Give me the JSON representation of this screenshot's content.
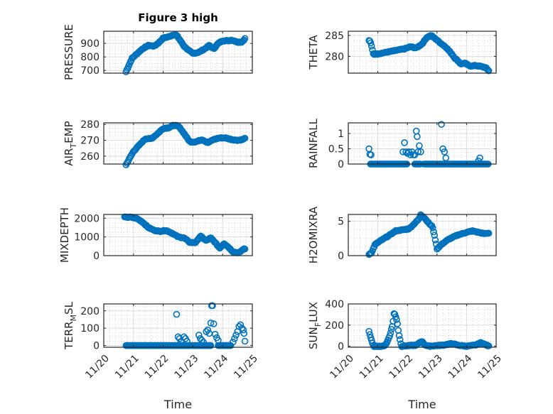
{
  "chart_data": {
    "type": "scatter",
    "figure_title": "Figure 3 high",
    "marker": "open-circle",
    "marker_color": "#0072BD",
    "grid": true,
    "minor_grid": true,
    "x_tick_labels": [
      "11/20",
      "11/21",
      "11/22",
      "11/23",
      "11/24",
      "11/25"
    ],
    "x_label": "Time",
    "x_range_days": [
      0,
      5
    ],
    "panels": [
      {
        "id": "pressure",
        "ylabel": "PRESSURE",
        "ylabel_sub": null,
        "ylim": [
          680,
          990
        ],
        "yticks": [
          700,
          800,
          900
        ],
        "column": 0,
        "row": 0,
        "title": "Figure 3 high",
        "keypoints": [
          [
            0.75,
            690
          ],
          [
            0.85,
            740
          ],
          [
            0.95,
            790
          ],
          [
            1.1,
            820
          ],
          [
            1.3,
            860
          ],
          [
            1.5,
            885
          ],
          [
            1.7,
            880
          ],
          [
            1.85,
            905
          ],
          [
            2.0,
            940
          ],
          [
            2.2,
            950
          ],
          [
            2.35,
            965
          ],
          [
            2.45,
            960
          ],
          [
            2.55,
            930
          ],
          [
            2.7,
            880
          ],
          [
            2.85,
            850
          ],
          [
            3.0,
            825
          ],
          [
            3.2,
            835
          ],
          [
            3.4,
            860
          ],
          [
            3.55,
            885
          ],
          [
            3.7,
            860
          ],
          [
            3.85,
            900
          ],
          [
            4.0,
            920
          ],
          [
            4.2,
            920
          ],
          [
            4.3,
            925
          ],
          [
            4.5,
            910
          ],
          [
            4.65,
            910
          ],
          [
            4.75,
            935
          ]
        ]
      },
      {
        "id": "theta",
        "ylabel": "THETA",
        "ylabel_sub": null,
        "ylim": [
          276,
          286
        ],
        "yticks": [
          280,
          285
        ],
        "column": 1,
        "row": 0,
        "keypoints": [
          [
            0.7,
            283.8
          ],
          [
            0.75,
            283.5
          ],
          [
            0.8,
            282
          ],
          [
            0.85,
            280.5
          ],
          [
            1.0,
            280.6
          ],
          [
            1.3,
            281
          ],
          [
            1.6,
            281.4
          ],
          [
            1.9,
            281.8
          ],
          [
            2.1,
            282.3
          ],
          [
            2.3,
            282
          ],
          [
            2.5,
            283
          ],
          [
            2.65,
            284.5
          ],
          [
            2.8,
            285
          ],
          [
            2.95,
            284.2
          ],
          [
            3.1,
            283.3
          ],
          [
            3.3,
            282.2
          ],
          [
            3.5,
            280.6
          ],
          [
            3.6,
            279.6
          ],
          [
            3.7,
            279
          ],
          [
            3.8,
            278.2
          ],
          [
            3.95,
            278.4
          ],
          [
            4.1,
            277.7
          ],
          [
            4.3,
            277.8
          ],
          [
            4.5,
            277.6
          ],
          [
            4.65,
            277.3
          ],
          [
            4.75,
            276.6
          ]
        ]
      },
      {
        "id": "air_temp",
        "ylabel": "AIR",
        "ylabel_sub": "T",
        "ylabel_after": "EMP",
        "ylim": [
          255,
          281
        ],
        "yticks": [
          260,
          270,
          280
        ],
        "column": 0,
        "row": 1,
        "keypoints": [
          [
            0.75,
            254.5
          ],
          [
            0.85,
            258
          ],
          [
            1.0,
            263
          ],
          [
            1.2,
            267
          ],
          [
            1.4,
            271
          ],
          [
            1.6,
            271
          ],
          [
            1.8,
            274
          ],
          [
            2.0,
            277.5
          ],
          [
            2.2,
            278
          ],
          [
            2.35,
            279.5
          ],
          [
            2.5,
            279
          ],
          [
            2.6,
            277
          ],
          [
            2.75,
            273
          ],
          [
            2.9,
            269
          ],
          [
            3.1,
            269
          ],
          [
            3.3,
            270.5
          ],
          [
            3.5,
            268.5
          ],
          [
            3.7,
            270.5
          ],
          [
            3.9,
            271.5
          ],
          [
            4.1,
            271.5
          ],
          [
            4.3,
            270.5
          ],
          [
            4.5,
            270
          ],
          [
            4.7,
            270.5
          ],
          [
            4.75,
            271.5
          ]
        ]
      },
      {
        "id": "rainfall",
        "ylabel": "RAINFALL",
        "ylabel_sub": null,
        "ylim": [
          0,
          1.35
        ],
        "yticks": [
          0,
          0.5,
          1
        ],
        "column": 1,
        "row": 1,
        "baseline_spans": [
          [
            0.75,
            2.0
          ],
          [
            2.25,
            2.45
          ],
          [
            2.6,
            3.3
          ],
          [
            3.35,
            4.75
          ]
        ],
        "spikes": [
          [
            0.7,
            0.5
          ],
          [
            0.73,
            0.32
          ],
          [
            0.77,
            0.3
          ],
          [
            1.85,
            0.4
          ],
          [
            1.9,
            0.7
          ],
          [
            1.95,
            0.4
          ],
          [
            2.0,
            0.35
          ],
          [
            2.05,
            0.4
          ],
          [
            2.1,
            0.3
          ],
          [
            2.15,
            0.4
          ],
          [
            2.2,
            0.3
          ],
          [
            2.25,
            0.3
          ],
          [
            2.3,
            1.08
          ],
          [
            2.33,
            0.9
          ],
          [
            2.36,
            0.4
          ],
          [
            2.4,
            0.6
          ],
          [
            2.45,
            0.4
          ],
          [
            2.55,
            0.0
          ],
          [
            3.15,
            1.3
          ],
          [
            3.2,
            0.5
          ],
          [
            3.25,
            0.4
          ],
          [
            3.3,
            0.2
          ],
          [
            4.4,
            0.1
          ],
          [
            4.45,
            0.2
          ]
        ]
      },
      {
        "id": "mixdepth",
        "ylabel": "MIXDEPTH",
        "ylabel_sub": null,
        "ylim": [
          0,
          2200
        ],
        "yticks": [
          0,
          1000,
          2000
        ],
        "column": 0,
        "row": 2,
        "keypoints": [
          [
            0.7,
            2050
          ],
          [
            0.9,
            2050
          ],
          [
            1.1,
            2000
          ],
          [
            1.3,
            1800
          ],
          [
            1.5,
            1500
          ],
          [
            1.7,
            1350
          ],
          [
            1.9,
            1300
          ],
          [
            2.1,
            1350
          ],
          [
            2.3,
            1200
          ],
          [
            2.5,
            1000
          ],
          [
            2.7,
            950
          ],
          [
            2.9,
            700
          ],
          [
            3.1,
            700
          ],
          [
            3.25,
            1050
          ],
          [
            3.45,
            800
          ],
          [
            3.6,
            950
          ],
          [
            3.75,
            700
          ],
          [
            3.9,
            400
          ],
          [
            4.05,
            650
          ],
          [
            4.2,
            450
          ],
          [
            4.35,
            200
          ],
          [
            4.55,
            150
          ],
          [
            4.7,
            350
          ],
          [
            4.75,
            350
          ]
        ]
      },
      {
        "id": "h2omixra",
        "ylabel": "H2OMIXRA",
        "ylabel_sub": null,
        "ylim": [
          0,
          6
        ],
        "yticks": [
          0,
          5
        ],
        "column": 1,
        "row": 2,
        "keypoints": [
          [
            0.7,
            0.2
          ],
          [
            0.8,
            0.5
          ],
          [
            0.9,
            1.6
          ],
          [
            1.1,
            2.2
          ],
          [
            1.4,
            3.0
          ],
          [
            1.6,
            3.6
          ],
          [
            1.9,
            3.8
          ],
          [
            2.05,
            3.9
          ],
          [
            2.2,
            4.5
          ],
          [
            2.4,
            5.4
          ],
          [
            2.45,
            6.0
          ],
          [
            2.6,
            5.4
          ],
          [
            2.75,
            4.6
          ],
          [
            2.85,
            4.2
          ],
          [
            2.9,
            3.2
          ],
          [
            2.95,
            2.2
          ],
          [
            3.0,
            1.0
          ],
          [
            3.1,
            1.4
          ],
          [
            3.2,
            1.8
          ],
          [
            3.4,
            2.4
          ],
          [
            3.7,
            3.0
          ],
          [
            4.0,
            3.4
          ],
          [
            4.2,
            3.6
          ],
          [
            4.4,
            3.4
          ],
          [
            4.6,
            3.2
          ],
          [
            4.75,
            3.3
          ]
        ]
      },
      {
        "id": "terr_msl",
        "ylabel": "TERR",
        "ylabel_sub": "M",
        "ylabel_after": "SL",
        "ylim": [
          -10,
          240
        ],
        "yticks": [
          0,
          100,
          200
        ],
        "column": 0,
        "row": 3,
        "baseline_spans": [
          [
            0.75,
            3.6
          ],
          [
            3.85,
            4.3
          ]
        ],
        "spikes": [
          [
            2.45,
            180
          ],
          [
            2.5,
            50
          ],
          [
            2.55,
            40
          ],
          [
            2.6,
            20
          ],
          [
            2.65,
            0
          ],
          [
            2.7,
            50
          ],
          [
            2.75,
            40
          ],
          [
            2.8,
            25
          ],
          [
            3.2,
            60
          ],
          [
            3.25,
            40
          ],
          [
            3.3,
            30
          ],
          [
            3.35,
            20
          ],
          [
            3.4,
            0
          ],
          [
            3.45,
            80
          ],
          [
            3.5,
            90
          ],
          [
            3.55,
            70
          ],
          [
            3.6,
            130
          ],
          [
            3.63,
            230
          ],
          [
            3.66,
            230
          ],
          [
            3.7,
            125
          ],
          [
            3.75,
            65
          ],
          [
            3.8,
            45
          ],
          [
            3.85,
            30
          ],
          [
            4.35,
            20
          ],
          [
            4.4,
            40
          ],
          [
            4.45,
            60
          ],
          [
            4.5,
            80
          ],
          [
            4.55,
            110
          ],
          [
            4.6,
            120
          ],
          [
            4.65,
            100
          ],
          [
            4.7,
            90
          ],
          [
            4.72,
            70
          ],
          [
            4.75,
            25
          ]
        ]
      },
      {
        "id": "sun_flux",
        "ylabel": "SUN",
        "ylabel_sub": "F",
        "ylabel_after": "LUX",
        "ylim": [
          -10,
          400
        ],
        "yticks": [
          0,
          200,
          400
        ],
        "column": 1,
        "row": 3,
        "keypoints": [
          [
            0.7,
            140
          ],
          [
            0.75,
            90
          ],
          [
            0.8,
            40
          ],
          [
            0.85,
            0
          ],
          [
            1.2,
            0
          ],
          [
            1.3,
            30
          ],
          [
            1.4,
            100
          ],
          [
            1.5,
            200
          ],
          [
            1.55,
            320
          ],
          [
            1.6,
            280
          ],
          [
            1.65,
            240
          ],
          [
            1.7,
            130
          ],
          [
            1.75,
            60
          ],
          [
            1.8,
            0
          ],
          [
            2.3,
            10
          ],
          [
            2.4,
            30
          ],
          [
            2.5,
            50
          ],
          [
            2.55,
            20
          ],
          [
            2.7,
            0
          ],
          [
            3.2,
            10
          ],
          [
            3.5,
            25
          ],
          [
            3.7,
            10
          ],
          [
            4.0,
            0
          ],
          [
            4.3,
            10
          ],
          [
            4.5,
            35
          ],
          [
            4.6,
            20
          ],
          [
            4.75,
            0
          ]
        ]
      }
    ]
  }
}
